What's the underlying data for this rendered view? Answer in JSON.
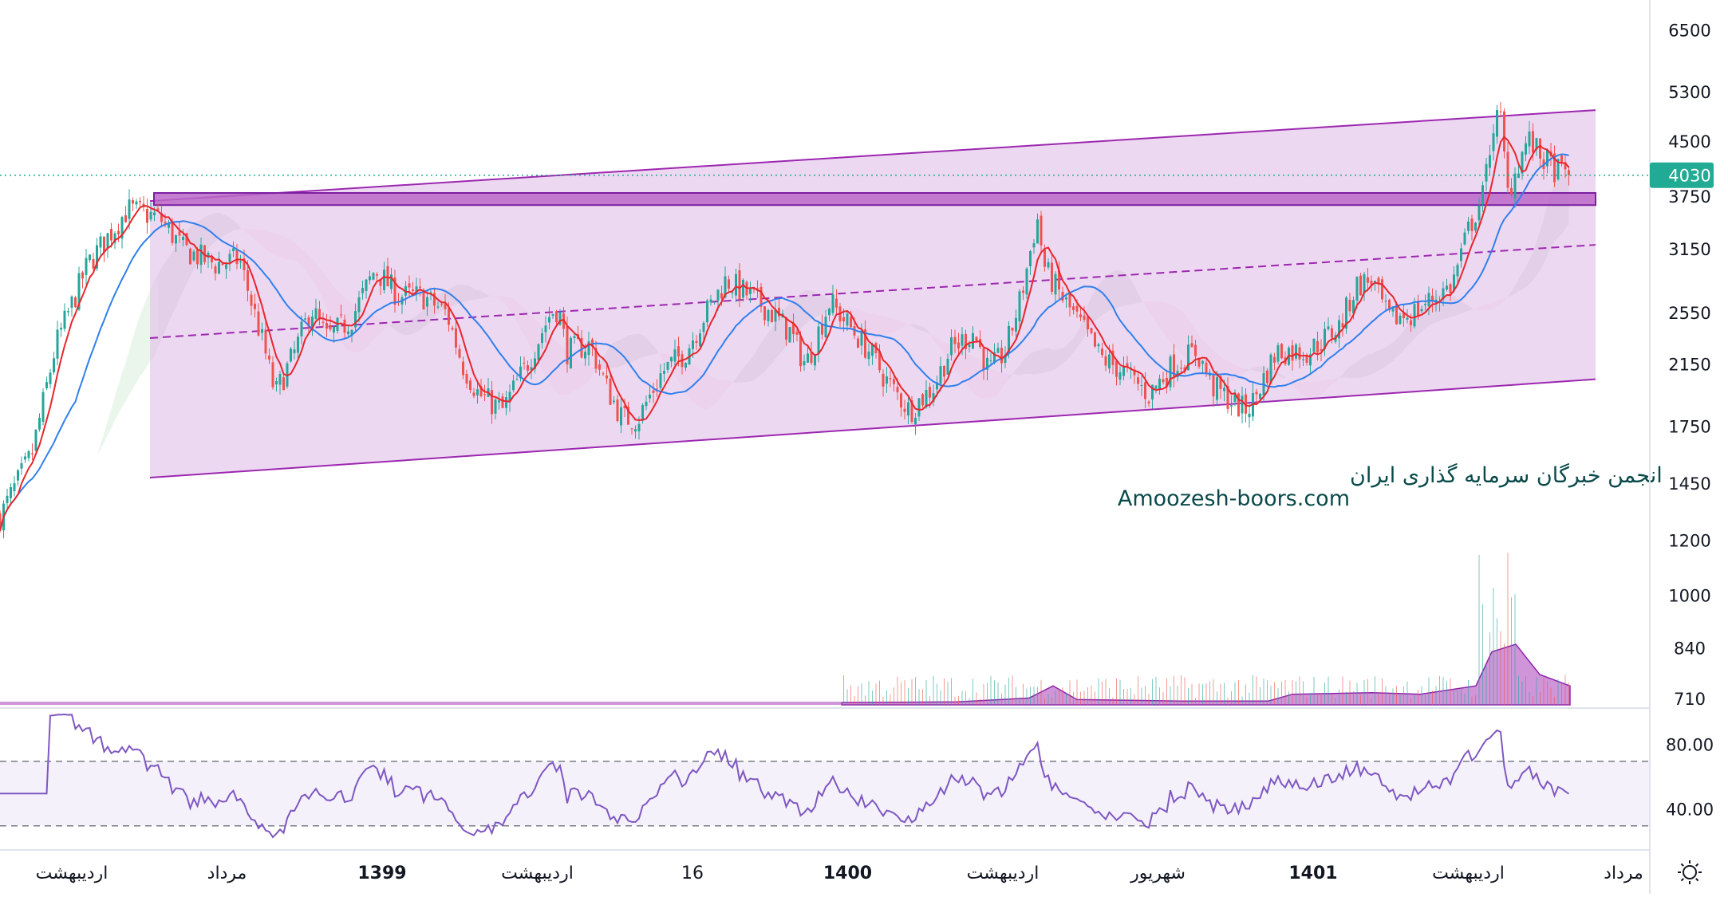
{
  "chart_data": {
    "type": "candlestick",
    "title": "",
    "price_axis": {
      "scale": "log",
      "range": [
        690,
        7200
      ],
      "ticks": [
        6500,
        5300,
        4500,
        3750,
        3150,
        2550,
        2150,
        1750,
        1450,
        1200,
        1000,
        840,
        710
      ],
      "last_price": 4030,
      "last_price_color": "#22ab94"
    },
    "time_axis": {
      "labels": [
        {
          "text": "اردیبهشت",
          "bold": false
        },
        {
          "text": "مرداد",
          "bold": false
        },
        {
          "text": "1399",
          "bold": true
        },
        {
          "text": "اردیبهشت",
          "bold": false
        },
        {
          "text": "16",
          "bold": false
        },
        {
          "text": "1400",
          "bold": true
        },
        {
          "text": "اردیبهشت",
          "bold": false
        },
        {
          "text": "شهریور",
          "bold": false
        },
        {
          "text": "1401",
          "bold": true
        },
        {
          "text": "اردیبهشت",
          "bold": false
        },
        {
          "text": "مرداد",
          "bold": false
        }
      ]
    },
    "price_path": [
      [
        0,
        1300
      ],
      [
        40,
        1600
      ],
      [
        70,
        2300
      ],
      [
        110,
        3000
      ],
      [
        160,
        3600
      ],
      [
        200,
        3500
      ],
      [
        230,
        3150
      ],
      [
        270,
        3000
      ],
      [
        300,
        3050
      ],
      [
        330,
        2300
      ],
      [
        345,
        1950
      ],
      [
        370,
        2250
      ],
      [
        390,
        2600
      ],
      [
        410,
        2350
      ],
      [
        440,
        2500
      ],
      [
        470,
        2950
      ],
      [
        500,
        2700
      ],
      [
        530,
        2700
      ],
      [
        560,
        2550
      ],
      [
        580,
        2150
      ],
      [
        600,
        1950
      ],
      [
        630,
        1850
      ],
      [
        660,
        2150
      ],
      [
        690,
        2550
      ],
      [
        700,
        2600
      ],
      [
        710,
        2250
      ],
      [
        740,
        2300
      ],
      [
        760,
        2000
      ],
      [
        780,
        1800
      ],
      [
        800,
        1800
      ],
      [
        830,
        2100
      ],
      [
        860,
        2250
      ],
      [
        880,
        2500
      ],
      [
        910,
        2850
      ],
      [
        940,
        2700
      ],
      [
        960,
        2600
      ],
      [
        990,
        2400
      ],
      [
        1010,
        2150
      ],
      [
        1040,
        2650
      ],
      [
        1070,
        2400
      ],
      [
        1090,
        2250
      ],
      [
        1110,
        2050
      ],
      [
        1140,
        1850
      ],
      [
        1170,
        2000
      ],
      [
        1190,
        2250
      ],
      [
        1220,
        2400
      ],
      [
        1240,
        2100
      ],
      [
        1260,
        2250
      ],
      [
        1280,
        2700
      ],
      [
        1300,
        3500
      ],
      [
        1310,
        2950
      ],
      [
        1330,
        2700
      ],
      [
        1360,
        2400
      ],
      [
        1380,
        2200
      ],
      [
        1410,
        2100
      ],
      [
        1440,
        1950
      ],
      [
        1470,
        2150
      ],
      [
        1500,
        2250
      ],
      [
        1520,
        2000
      ],
      [
        1560,
        1850
      ],
      [
        1570,
        1900
      ],
      [
        1600,
        2250
      ],
      [
        1640,
        2250
      ],
      [
        1680,
        2450
      ],
      [
        1700,
        2800
      ],
      [
        1720,
        2850
      ],
      [
        1740,
        2500
      ],
      [
        1770,
        2550
      ],
      [
        1800,
        2700
      ],
      [
        1820,
        2800
      ],
      [
        1840,
        3350
      ],
      [
        1860,
        3800
      ],
      [
        1870,
        4700
      ],
      [
        1880,
        4950
      ],
      [
        1890,
        3800
      ],
      [
        1900,
        4100
      ],
      [
        1915,
        4550
      ],
      [
        1930,
        4300
      ],
      [
        1950,
        4100
      ],
      [
        1968,
        4030
      ]
    ],
    "indicators": [
      "moving average (red)",
      "moving average (blue)",
      "ichimoku cloud",
      "volume",
      "RSI"
    ],
    "channel": {
      "upper": [
        [
          140,
          3700
        ],
        [
          2000,
          5000
        ]
      ],
      "lower": [
        [
          188,
          1480
        ],
        [
          2000,
          2050
        ]
      ],
      "mid_dashed": [
        [
          188,
          2350
        ],
        [
          2000,
          3200
        ]
      ],
      "resistance_zone": [
        3650,
        3800
      ]
    },
    "volume": {
      "area_start_x": 1055,
      "profile": [
        [
          1055,
          0.03
        ],
        [
          1200,
          0.04
        ],
        [
          1290,
          0.09
        ],
        [
          1320,
          0.25
        ],
        [
          1350,
          0.07
        ],
        [
          1480,
          0.05
        ],
        [
          1590,
          0.05
        ],
        [
          1620,
          0.14
        ],
        [
          1720,
          0.16
        ],
        [
          1780,
          0.14
        ],
        [
          1850,
          0.25
        ],
        [
          1870,
          0.7
        ],
        [
          1900,
          0.8
        ],
        [
          1930,
          0.4
        ],
        [
          1968,
          0.25
        ]
      ]
    },
    "rsi": {
      "range": [
        18,
        100
      ],
      "ticks": [
        80.0,
        40.0
      ],
      "ticks_text": [
        "80.00",
        "40.00"
      ],
      "band": [
        30,
        70
      ]
    },
    "watermark": {
      "line1": "انجمن خبرگان سرمایه گذاری ایران",
      "line2": "Amoozesh-boors.com"
    },
    "colors": {
      "up": "#26a69a",
      "down": "#ef5350",
      "ma_fast": "#e8262b",
      "ma_slow": "#2f80ed",
      "channel_line": "#9c27b0",
      "channel_fill": "#e1bee7",
      "resistance_fill": "#ba68c8",
      "volume_fill": "#ba68c8",
      "rsi_line": "#7e57c2",
      "rsi_band": "#ede7f6",
      "cloud_green": "#e8f5e9",
      "cloud_red": "#fce4ec",
      "cloud_grey": "#d6d6d6"
    }
  },
  "toolbar": {
    "settings_icon": "sun-gear-icon"
  }
}
